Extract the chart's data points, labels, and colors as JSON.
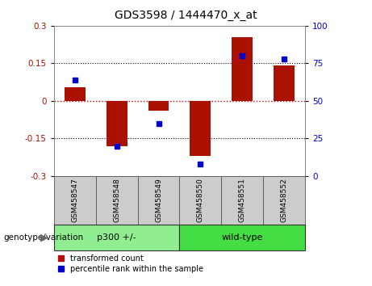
{
  "title": "GDS3598 / 1444470_x_at",
  "categories": [
    "GSM458547",
    "GSM458548",
    "GSM458549",
    "GSM458550",
    "GSM458551",
    "GSM458552"
  ],
  "red_bars": [
    0.055,
    -0.18,
    -0.04,
    -0.22,
    0.255,
    0.14
  ],
  "blue_dots": [
    64,
    20,
    35,
    8,
    80,
    78
  ],
  "ylim_left": [
    -0.3,
    0.3
  ],
  "ylim_right": [
    0,
    100
  ],
  "yticks_left": [
    -0.3,
    -0.15,
    0,
    0.15,
    0.3
  ],
  "yticks_right": [
    0,
    25,
    50,
    75,
    100
  ],
  "hlines_dotted": [
    0.15,
    -0.15
  ],
  "bar_color": "#aa1100",
  "dot_color": "#0000cc",
  "zero_line_color": "#cc0000",
  "p300_color": "#90ee90",
  "wildtype_color": "#44dd44",
  "label_bg_color": "#cccccc",
  "groups": [
    {
      "label": "p300 +/-",
      "count": 3
    },
    {
      "label": "wild-type",
      "count": 3
    }
  ],
  "genotype_label": "genotype/variation",
  "legend_red": "transformed count",
  "legend_blue": "percentile rank within the sample",
  "bar_width": 0.5,
  "title_fontsize": 10,
  "tick_fontsize": 7.5,
  "cat_fontsize": 6.5,
  "group_fontsize": 8,
  "legend_fontsize": 7,
  "genotype_fontsize": 7.5
}
